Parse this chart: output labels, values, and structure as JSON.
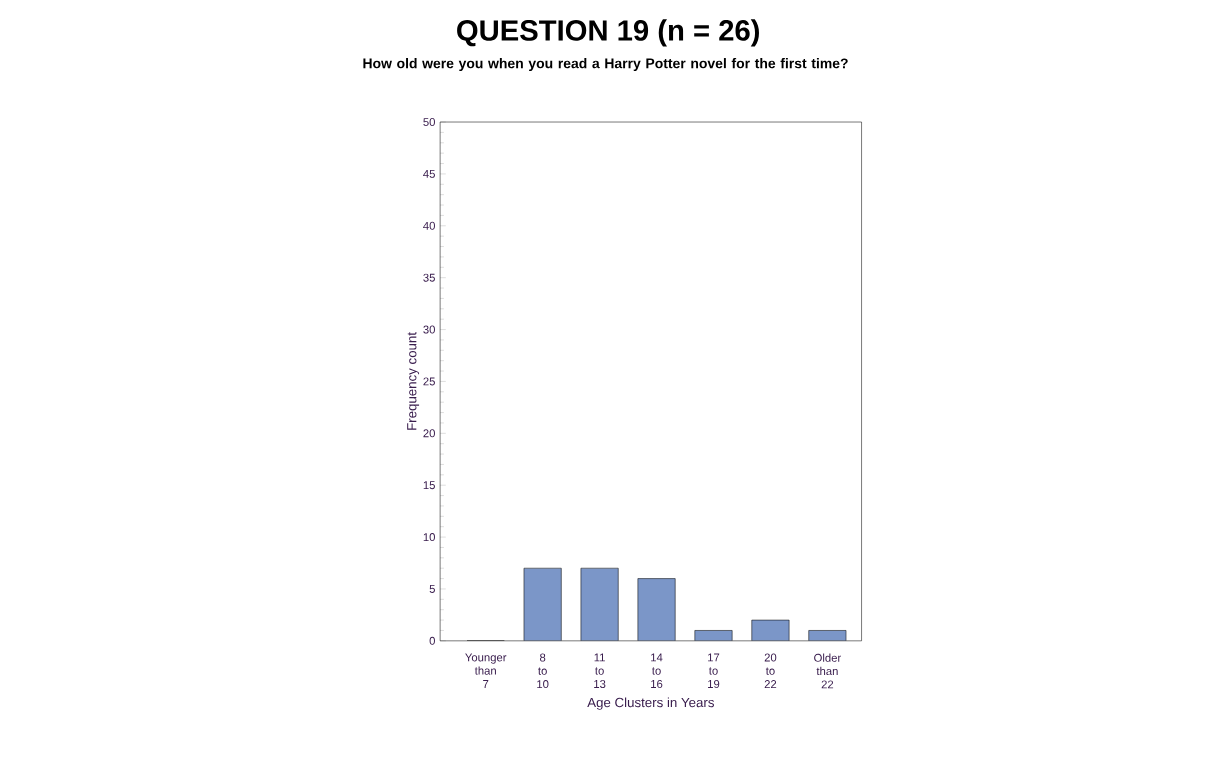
{
  "chart_data": {
    "type": "bar",
    "title": "QUESTION 19 (n = 26)",
    "subtitle": "How old were you when you read a Harry Potter novel for the first time?",
    "xlabel": "Age Clusters in Years",
    "ylabel": "Frequency count",
    "categories": [
      "Younger than 7",
      "8 to 10",
      "11 to 13",
      "14 to 16",
      "17 to 19",
      "20 to 22",
      "Older than 22"
    ],
    "values": [
      0,
      7,
      7,
      6,
      1,
      2,
      1
    ],
    "color": "#7b96c8",
    "ylim": [
      0,
      50
    ],
    "yticks": [
      0,
      5,
      10,
      15,
      20,
      25,
      30,
      35,
      40,
      45,
      50
    ]
  }
}
